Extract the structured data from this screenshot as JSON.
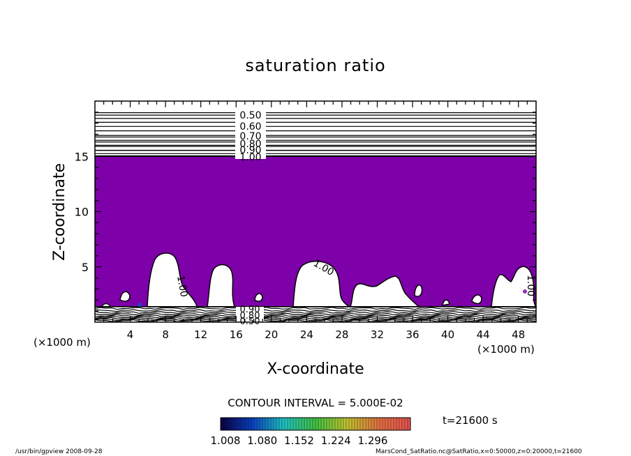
{
  "chart_data": {
    "type": "contour",
    "title": "saturation ratio",
    "xlabel": "X-coordinate",
    "ylabel": "Z-coordinate",
    "x_unit_label": "(×1000 m)",
    "xlim": [
      0,
      50
    ],
    "ylim": [
      0,
      20
    ],
    "x_ticks": [
      4,
      8,
      12,
      16,
      20,
      24,
      28,
      32,
      36,
      40,
      44,
      48
    ],
    "y_ticks": [
      5,
      10,
      15
    ],
    "fill_color": "#7d00a8",
    "contour_interval_text": "CONTOUR INTERVAL = 5.000E-02",
    "time_text": "t=21600 s",
    "colorbar": {
      "tick_labels": [
        "1.008",
        "1.080",
        "1.152",
        "1.224",
        "1.296"
      ],
      "colors": [
        "#0a0040",
        "#0a40c0",
        "#20c0c0",
        "#40c040",
        "#c0c030",
        "#e07040",
        "#e05050"
      ]
    },
    "contour_labels": [
      "0.50",
      "0.60",
      "0.70",
      "0.80",
      "0.90",
      "1.00",
      "0.90",
      "0.80",
      "0.50",
      "1.00",
      "1.00",
      "1.00"
    ],
    "upper_contour_levels": [
      0.5,
      0.55,
      0.6,
      0.65,
      0.7,
      0.75,
      0.8,
      0.85,
      0.9,
      0.95,
      1.0
    ],
    "footer_left": "/usr/bin/gpview   2008-09-28",
    "footer_right": "MarsCond_SatRatio.nc@SatRatio,x=0:50000,z=0:20000,t=21600"
  }
}
